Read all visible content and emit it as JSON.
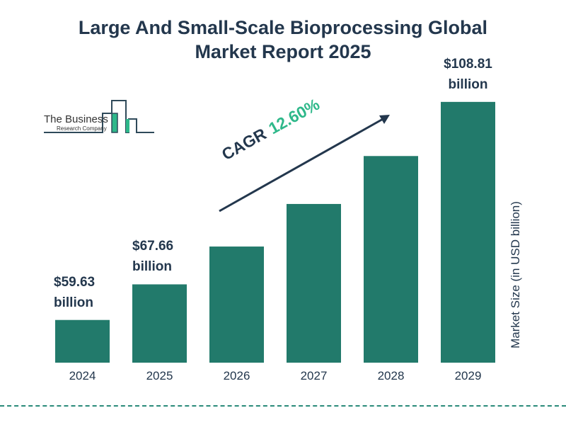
{
  "chart_data": {
    "type": "bar",
    "title": "Large And Small-Scale Bioprocessing Global Market Report 2025",
    "title_lines": [
      "Large And Small-Scale Bioprocessing Global",
      "Market Report 2025"
    ],
    "categories": [
      "2024",
      "2025",
      "2026",
      "2027",
      "2028",
      "2029"
    ],
    "values": [
      59.63,
      67.66,
      76.19,
      85.79,
      96.6,
      108.81
    ],
    "data_labels": [
      {
        "index": 0,
        "value": "$59.63",
        "unit": "billion"
      },
      {
        "index": 1,
        "value": "$67.66",
        "unit": "billion"
      },
      {
        "index": 5,
        "value": "$108.81",
        "unit": "billion"
      }
    ],
    "ylabel": "Market Size (in USD billion)",
    "xlabel": "",
    "ylim": [
      50,
      115
    ],
    "grid": false,
    "bar_color": "#227a6b",
    "annotation": {
      "label": "CAGR",
      "value": "12.60%",
      "value_color": "#2eb88a"
    }
  },
  "logo": {
    "line1": "The Business",
    "line2": "Research Company"
  }
}
